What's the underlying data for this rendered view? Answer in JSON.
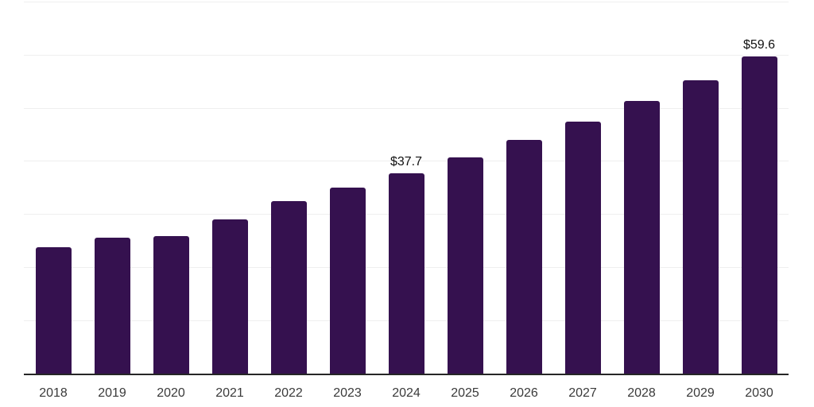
{
  "chart_data": {
    "type": "bar",
    "title": "",
    "xlabel": "",
    "ylabel": "",
    "categories": [
      "2018",
      "2019",
      "2020",
      "2021",
      "2022",
      "2023",
      "2024",
      "2025",
      "2026",
      "2027",
      "2028",
      "2029",
      "2030"
    ],
    "values": [
      23.7,
      25.5,
      25.9,
      29.0,
      32.4,
      35.0,
      37.7,
      40.7,
      43.9,
      47.4,
      51.2,
      55.2,
      59.6
    ],
    "value_labels": [
      {
        "category": "2024",
        "text": "$37.7"
      },
      {
        "category": "2030",
        "text": "$59.6"
      }
    ],
    "ylim": [
      0,
      70
    ],
    "gridline_step": 10,
    "grid": "horizontal",
    "legend": "none",
    "colors": {
      "bar": "#35114f",
      "axis_line": "#262626",
      "gridline": "#efefef",
      "tick_label": "#3a3a3a",
      "value_label": "#111111",
      "background": "#ffffff"
    }
  }
}
